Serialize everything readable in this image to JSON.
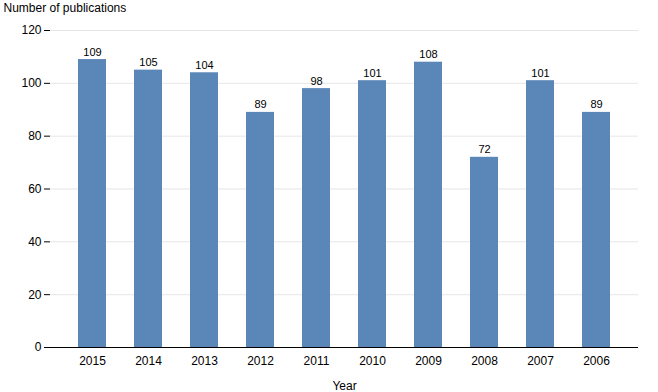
{
  "chart_data": {
    "type": "bar",
    "categories": [
      "2015",
      "2014",
      "2013",
      "2012",
      "2011",
      "2010",
      "2009",
      "2008",
      "2007",
      "2006"
    ],
    "values": [
      109,
      105,
      104,
      89,
      98,
      101,
      108,
      72,
      101,
      89
    ],
    "color": "#5b87b8",
    "xlabel": "Year",
    "ylabel": "Number of publications",
    "ylim": [
      0,
      120
    ],
    "yticks": [
      0,
      20,
      40,
      60,
      80,
      100,
      120
    ],
    "grid": true,
    "data_labels": true
  }
}
